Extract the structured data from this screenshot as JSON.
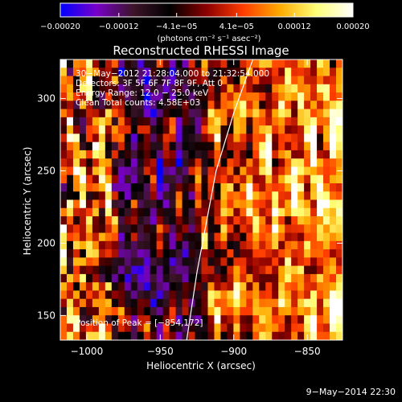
{
  "chart_data": {
    "type": "heatmap",
    "title": "Reconstructed RHESSI Image",
    "xlabel": "Heliocentric X (arcsec)",
    "ylabel": "Heliocentric Y (arcsec)",
    "xlim": [
      -1018,
      -826
    ],
    "ylim": [
      133,
      327
    ],
    "xticks": [
      {
        "v": -1000,
        "label": "−1000"
      },
      {
        "v": -950,
        "label": "−950"
      },
      {
        "v": -900,
        "label": "−900"
      },
      {
        "v": -850,
        "label": "−850"
      }
    ],
    "yticks": [
      {
        "v": 150,
        "label": "150"
      },
      {
        "v": 200,
        "label": "200"
      },
      {
        "v": 250,
        "label": "250"
      },
      {
        "v": 300,
        "label": "300"
      }
    ],
    "colorbar": {
      "min": -0.0002,
      "max": 0.0002,
      "unit_label": "(photons cm⁻² s⁻¹ asec⁻²)",
      "ticks": [
        {
          "v": -0.0002,
          "label": "−0.00020"
        },
        {
          "v": -0.00012,
          "label": "−0.00012"
        },
        {
          "v": -4.1e-05,
          "label": "−4.1e−05"
        },
        {
          "v": 4.1e-05,
          "label": "4.1e−05"
        },
        {
          "v": 0.00012,
          "label": "0.00012"
        },
        {
          "v": 0.0002,
          "label": "0.00020"
        }
      ],
      "colors": [
        "#0000ff",
        "#7800c8",
        "#3c1428",
        "#000000",
        "#8c0000",
        "#ff3c00",
        "#ffaa00",
        "#ffff78",
        "#ffffff"
      ]
    },
    "annotations": [
      "30−May−2012 21:28:04.000 to 21:32:54.000",
      "Detectors: 3F 5F 6F 7F 8F 9F, Att 0",
      "Energy Range: 12.0 − 25.0 keV",
      "Clean     Total counts: 4.58E+03"
    ],
    "peak_text": "Position of Peak = [−854,172]",
    "limb_line": [
      [
        -932,
        133
      ],
      [
        -925,
        180
      ],
      [
        -912,
        250
      ],
      [
        -900,
        290
      ],
      [
        -887,
        327
      ]
    ]
  },
  "footer_timestamp": "9−May−2014 22:30"
}
